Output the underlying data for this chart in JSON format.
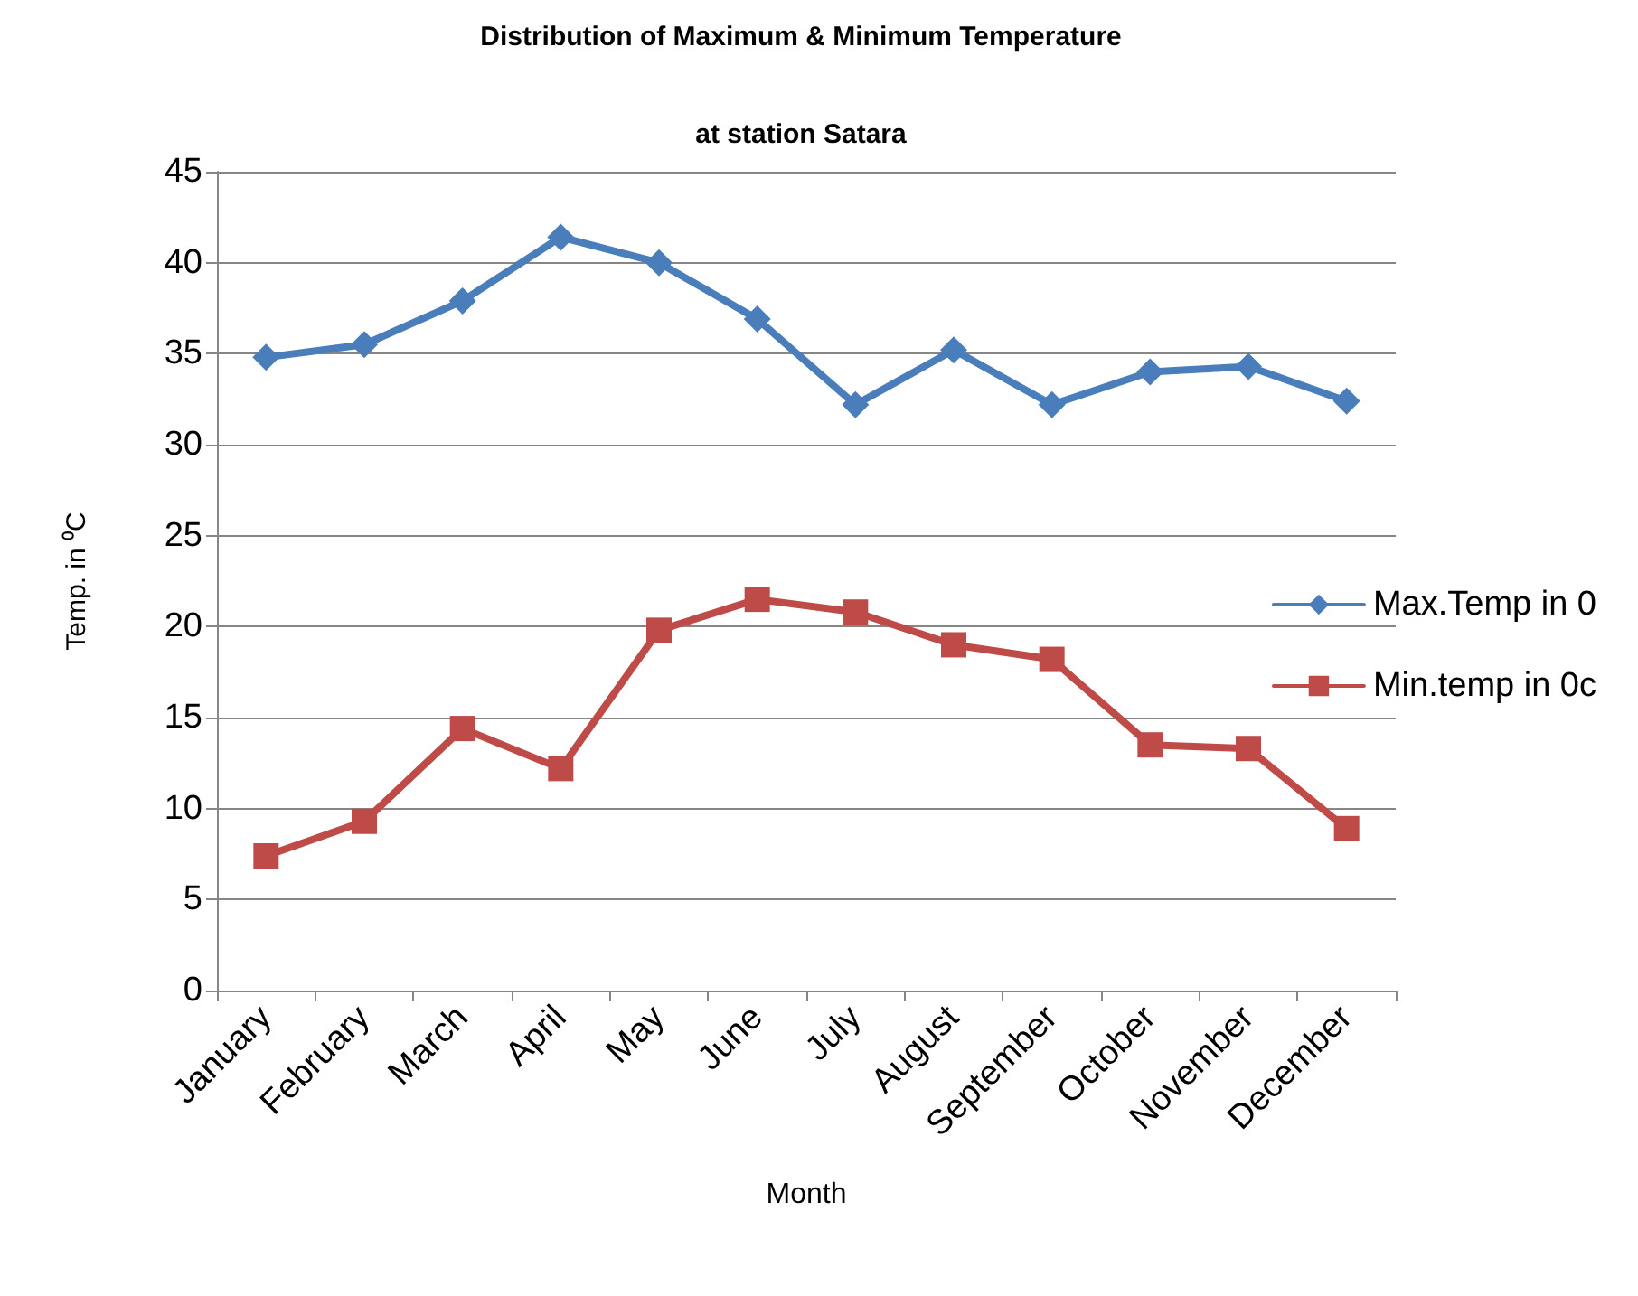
{
  "chart_data": {
    "type": "line",
    "title": "Distribution of Maximum & Minimum Temperature",
    "subtitle": "at station Satara",
    "xlabel": "Month",
    "ylabel": "Temp. in ⁰C",
    "categories": [
      "January",
      "February",
      "March",
      "April",
      "May",
      "June",
      "July",
      "August",
      "September",
      "October",
      "November",
      "December"
    ],
    "series": [
      {
        "name": "Max.Temp in 0",
        "color": "#4a7ebb",
        "marker": "diamond",
        "values": [
          34.8,
          35.5,
          37.9,
          41.4,
          40.0,
          36.9,
          32.2,
          35.2,
          32.2,
          34.0,
          34.3,
          32.4
        ]
      },
      {
        "name": "Min.temp in 0c",
        "color": "#be4b48",
        "marker": "square",
        "values": [
          7.4,
          9.3,
          14.4,
          12.2,
          19.8,
          21.5,
          20.8,
          19.0,
          18.2,
          13.5,
          13.3,
          8.9
        ]
      }
    ],
    "ylim": [
      0,
      45
    ],
    "yticks": [
      0,
      5,
      10,
      15,
      20,
      25,
      30,
      35,
      40,
      45
    ],
    "grid": "y",
    "legend": "right",
    "line_style": "solid"
  }
}
